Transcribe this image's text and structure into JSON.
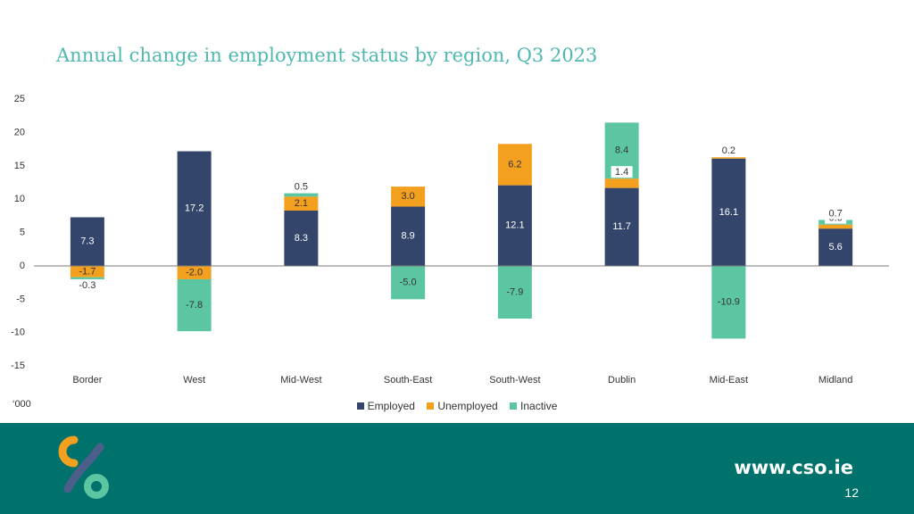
{
  "title": "Annual change in employment status by region, Q3 2023",
  "unit_note": "‘000",
  "footer": {
    "url": "www.cso.ie",
    "page_number": "12"
  },
  "colors": {
    "employed": "#34456b",
    "unemployed": "#f2a01e",
    "inactive": "#5cc6a2",
    "footer_bg": "#00726b",
    "title": "#4fb8b0"
  },
  "chart_data": {
    "type": "bar",
    "stacked": true,
    "categories": [
      "Border",
      "West",
      "Mid-West",
      "South-East",
      "South-West",
      "Dublin",
      "Mid-East",
      "Midland"
    ],
    "series": [
      {
        "name": "Employed",
        "values": [
          7.3,
          17.2,
          8.3,
          8.9,
          12.1,
          11.7,
          16.1,
          5.6
        ],
        "labels": [
          "7.3",
          "17.2",
          "8.3",
          "8.9",
          "12.1",
          "11.7",
          "16.1",
          "5.6"
        ]
      },
      {
        "name": "Unemployed",
        "values": [
          -1.7,
          -2.0,
          2.1,
          3.0,
          6.2,
          1.4,
          0.2,
          0.6
        ],
        "labels": [
          "-1.7",
          "-2.0",
          "2.1",
          "3.0",
          "6.2",
          "1.4",
          "0.2",
          "0.6"
        ]
      },
      {
        "name": "Inactive",
        "values": [
          -0.3,
          -7.8,
          0.5,
          -5.0,
          -7.9,
          8.4,
          -10.9,
          0.7
        ],
        "labels": [
          "-0.3",
          "-7.8",
          "0.5",
          "-5.0",
          "-7.9",
          "8.4",
          "-10.9",
          "0.7"
        ]
      }
    ],
    "yticks": [
      "-15",
      "-10",
      "-5",
      "0",
      "5",
      "10",
      "15",
      "20",
      "25"
    ],
    "ylim": [
      -15,
      25
    ],
    "legend_position": "bottom",
    "grid": false
  }
}
